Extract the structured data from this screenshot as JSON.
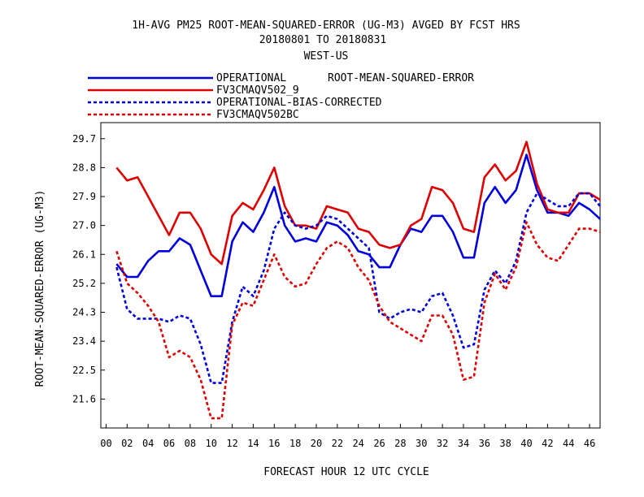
{
  "chart_data": {
    "type": "line",
    "title_lines": [
      "1H-AVG PM25 ROOT-MEAN-SQUARED-ERROR (UG-M3)  AVGED BY FCST HRS",
      "20180801 TO 20180831",
      "WEST-US"
    ],
    "metric_label": "ROOT-MEAN-SQUARED-ERROR",
    "xlabel": "FORECAST HOUR  12 UTC CYCLE",
    "ylabel": "ROOT-MEAN-SQUARED-ERROR (UG-M3)",
    "xlim": [
      -0.5,
      47
    ],
    "ylim": [
      20.7,
      30.2
    ],
    "x_ticks": [
      "00",
      "02",
      "04",
      "06",
      "08",
      "10",
      "12",
      "14",
      "16",
      "18",
      "20",
      "22",
      "24",
      "26",
      "28",
      "30",
      "32",
      "34",
      "36",
      "38",
      "40",
      "42",
      "44",
      "46"
    ],
    "y_ticks": [
      "21.6",
      "22.5",
      "23.4",
      "24.3",
      "25.2",
      "26.1",
      "27.0",
      "27.9",
      "28.8",
      "29.7"
    ],
    "x": [
      1,
      2,
      3,
      4,
      5,
      6,
      7,
      8,
      9,
      10,
      11,
      12,
      13,
      14,
      15,
      16,
      17,
      18,
      19,
      20,
      21,
      22,
      23,
      24,
      25,
      26,
      27,
      28,
      29,
      30,
      31,
      32,
      33,
      34,
      35,
      36,
      37,
      38,
      39,
      40,
      41,
      42,
      43,
      44,
      45,
      46,
      47
    ],
    "series": [
      {
        "name": "OPERATIONAL",
        "color": "#0000dd",
        "dashed": false,
        "values": [
          25.8,
          25.4,
          25.4,
          25.9,
          26.2,
          26.2,
          26.6,
          26.4,
          25.6,
          24.8,
          24.8,
          26.5,
          27.1,
          26.8,
          27.4,
          28.2,
          27.0,
          26.5,
          26.6,
          26.5,
          27.1,
          27.0,
          26.7,
          26.2,
          26.1,
          25.7,
          25.7,
          26.4,
          26.9,
          26.8,
          27.3,
          27.3,
          26.8,
          26.0,
          26.0,
          27.7,
          28.2,
          27.7,
          28.1,
          29.2,
          28.1,
          27.4,
          27.4,
          27.3,
          27.7,
          27.5,
          27.2
        ]
      },
      {
        "name": "FV3CMAQV502_9",
        "color": "#dd0000",
        "dashed": false,
        "values": [
          28.8,
          28.4,
          28.5,
          27.9,
          27.3,
          26.7,
          27.4,
          27.4,
          26.9,
          26.1,
          25.8,
          27.3,
          27.7,
          27.5,
          28.1,
          28.8,
          27.6,
          27.0,
          27.0,
          26.9,
          27.6,
          27.5,
          27.4,
          26.9,
          26.8,
          26.4,
          26.3,
          26.4,
          27.0,
          27.2,
          28.2,
          28.1,
          27.7,
          26.9,
          26.8,
          28.5,
          28.9,
          28.4,
          28.7,
          29.6,
          28.3,
          27.5,
          27.4,
          27.4,
          28.0,
          28.0,
          27.8
        ]
      },
      {
        "name": "OPERATIONAL-BIAS-CORRECTED",
        "color": "#0000dd",
        "dashed": true,
        "values": [
          25.7,
          24.4,
          24.1,
          24.1,
          24.1,
          24.0,
          24.2,
          24.1,
          23.3,
          22.1,
          22.1,
          24.0,
          25.1,
          24.8,
          25.6,
          26.9,
          27.4,
          27.0,
          26.9,
          27.0,
          27.3,
          27.2,
          26.9,
          26.6,
          26.3,
          24.3,
          24.1,
          24.3,
          24.4,
          24.3,
          24.8,
          24.9,
          24.2,
          23.2,
          23.3,
          25.0,
          25.6,
          25.2,
          25.9,
          27.4,
          28.0,
          27.8,
          27.6,
          27.6,
          28.0,
          28.0,
          27.6
        ]
      },
      {
        "name": "FV3CMAQV502BC",
        "color": "#dd0000",
        "dashed": true,
        "values": [
          26.2,
          25.2,
          24.9,
          24.5,
          24.0,
          22.9,
          23.1,
          22.9,
          22.2,
          21.0,
          21.0,
          23.9,
          24.6,
          24.5,
          25.3,
          26.1,
          25.4,
          25.1,
          25.2,
          25.8,
          26.3,
          26.5,
          26.3,
          25.7,
          25.3,
          24.5,
          24.0,
          23.8,
          23.6,
          23.4,
          24.2,
          24.2,
          23.6,
          22.2,
          22.3,
          24.6,
          25.5,
          25.0,
          25.7,
          27.1,
          26.4,
          26.0,
          25.9,
          26.4,
          26.9,
          26.9,
          26.8
        ]
      }
    ]
  }
}
